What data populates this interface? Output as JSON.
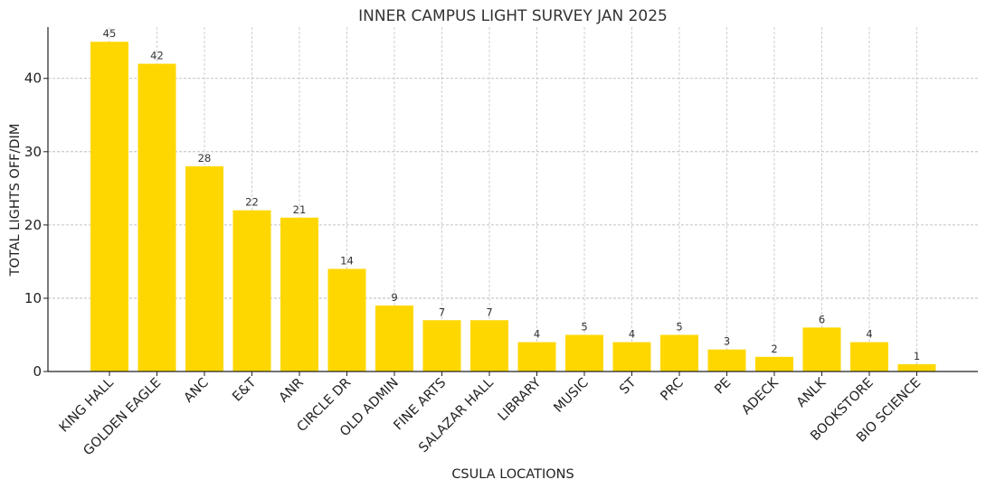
{
  "chart_data": {
    "type": "bar",
    "title": "INNER CAMPUS LIGHT SURVEY JAN 2025",
    "xlabel": "CSULA LOCATIONS",
    "ylabel": "TOTAL LIGHTS OFF/DIM",
    "categories": [
      "KING HALL",
      "GOLDEN EAGLE",
      "ANC",
      "E&T",
      "ANR",
      "CIRCLE DR",
      "OLD ADMIN",
      "FINE ARTS",
      "SALAZAR HALL",
      "LIBRARY",
      "MUSIC",
      "ST",
      "PRC",
      "PE",
      "ADECK",
      "ANLK",
      "BOOKSTORE",
      "BIO SCIENCE"
    ],
    "values": [
      45,
      42,
      28,
      22,
      21,
      14,
      9,
      7,
      7,
      4,
      5,
      4,
      5,
      3,
      2,
      6,
      4,
      1
    ],
    "ylim": [
      0,
      47
    ],
    "yticks": [
      0,
      10,
      20,
      30,
      40
    ],
    "bar_color": "#FFD700",
    "grid": true,
    "data_labels": true
  }
}
